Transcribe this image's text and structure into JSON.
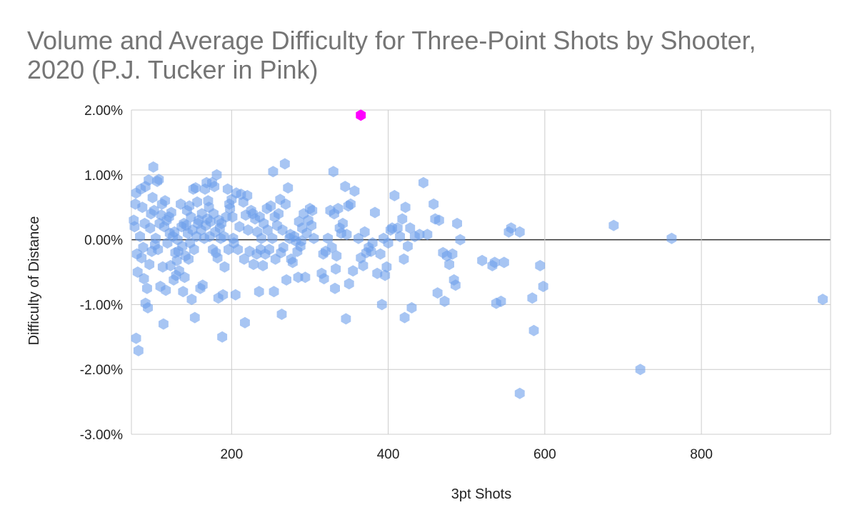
{
  "chart_data": {
    "type": "scatter",
    "title": "Volume and Average Difficulty for Three-Point Shots by Shooter, 2020 (P.J. Tucker in Pink)",
    "xlabel": "3pt Shots",
    "ylabel": "Difficulty of Distance",
    "xlim": [
      72,
      965
    ],
    "ylim": [
      -3.0,
      2.0
    ],
    "x_ticks": [
      200,
      400,
      600,
      800
    ],
    "x_tick_labels": [
      "200",
      "400",
      "600",
      "800"
    ],
    "y_ticks": [
      2.0,
      1.0,
      0.0,
      -1.0,
      -2.0,
      -3.0
    ],
    "y_tick_labels": [
      "2.00%",
      "1.00%",
      "0.00%",
      "-1.00%",
      "-2.00%",
      "-3.00%"
    ],
    "y_unit": "%",
    "grid": true,
    "legend": "none",
    "marker": "hexagon",
    "colors": {
      "default": "#6d9eeb",
      "highlight": "#ff00ff"
    },
    "series": [
      {
        "values": [
          [
            75,
            0.3
          ],
          [
            76,
            0.2
          ],
          [
            77,
            0.55
          ],
          [
            78,
            0.72
          ],
          [
            78,
            -1.52
          ],
          [
            79,
            -0.22
          ],
          [
            80,
            -0.5
          ],
          [
            81,
            -1.71
          ],
          [
            83,
            0.05
          ],
          [
            84,
            0.78
          ],
          [
            85,
            -0.28
          ],
          [
            86,
            0.5
          ],
          [
            87,
            -0.12
          ],
          [
            88,
            -0.6
          ],
          [
            89,
            0.25
          ],
          [
            90,
            -0.98
          ],
          [
            90,
            0.82
          ],
          [
            92,
            -0.75
          ],
          [
            93,
            -1.05
          ],
          [
            94,
            0.92
          ],
          [
            95,
            -0.38
          ],
          [
            96,
            0.18
          ],
          [
            97,
            0.4
          ],
          [
            98,
            -0.18
          ],
          [
            99,
            0.65
          ],
          [
            100,
            1.12
          ],
          [
            101,
            0.45
          ],
          [
            102,
            -0.08
          ],
          [
            103,
            0.02
          ],
          [
            105,
            0.9
          ],
          [
            106,
            -0.15
          ],
          [
            107,
            0.93
          ],
          [
            108,
            0.25
          ],
          [
            109,
            -0.72
          ],
          [
            110,
            0.38
          ],
          [
            111,
            0.55
          ],
          [
            112,
            -0.42
          ],
          [
            113,
            -1.3
          ],
          [
            114,
            0.2
          ],
          [
            115,
            0.6
          ],
          [
            116,
            -0.78
          ],
          [
            117,
            0.3
          ],
          [
            118,
            -0.05
          ],
          [
            120,
            0.35
          ],
          [
            121,
            0.1
          ],
          [
            122,
            -0.4
          ],
          [
            123,
            0.42
          ],
          [
            125,
            0.05
          ],
          [
            126,
            -0.62
          ],
          [
            127,
            0.12
          ],
          [
            128,
            -0.2
          ],
          [
            129,
            -0.55
          ],
          [
            130,
            -0.32
          ],
          [
            131,
            0.0
          ],
          [
            132,
            -0.18
          ],
          [
            133,
            -0.48
          ],
          [
            135,
            0.55
          ],
          [
            136,
            0.2
          ],
          [
            137,
            -0.1
          ],
          [
            138,
            -0.8
          ],
          [
            139,
            0.25
          ],
          [
            140,
            -0.58
          ],
          [
            141,
            -0.25
          ],
          [
            142,
            0.22
          ],
          [
            143,
            0.45
          ],
          [
            144,
            0.1
          ],
          [
            145,
            -0.3
          ],
          [
            146,
            0.52
          ],
          [
            147,
            -0.05
          ],
          [
            148,
            0.35
          ],
          [
            149,
            -0.92
          ],
          [
            150,
            0.15
          ],
          [
            151,
            0.78
          ],
          [
            152,
            -0.15
          ],
          [
            153,
            -1.2
          ],
          [
            154,
            0.8
          ],
          [
            155,
            0.05
          ],
          [
            156,
            0.58
          ],
          [
            157,
            0.25
          ],
          [
            158,
            0.3
          ],
          [
            160,
            -0.75
          ],
          [
            161,
            0.15
          ],
          [
            162,
            0.4
          ],
          [
            163,
            -0.7
          ],
          [
            165,
            0.02
          ],
          [
            166,
            0.78
          ],
          [
            167,
            0.22
          ],
          [
            168,
            0.88
          ],
          [
            169,
            0.32
          ],
          [
            170,
            0.6
          ],
          [
            171,
            0.5
          ],
          [
            172,
            0.05
          ],
          [
            173,
            0.28
          ],
          [
            175,
            0.88
          ],
          [
            176,
            -0.15
          ],
          [
            177,
            0.4
          ],
          [
            178,
            0.82
          ],
          [
            179,
            0.12
          ],
          [
            180,
            -0.2
          ],
          [
            181,
            1.0
          ],
          [
            182,
            -0.28
          ],
          [
            183,
            -0.9
          ],
          [
            184,
            0.3
          ],
          [
            185,
            0.18
          ],
          [
            186,
            0.02
          ],
          [
            187,
            0.25
          ],
          [
            188,
            -1.5
          ],
          [
            189,
            -0.85
          ],
          [
            190,
            0.05
          ],
          [
            191,
            -0.42
          ],
          [
            193,
            0.35
          ],
          [
            195,
            0.78
          ],
          [
            196,
            -0.15
          ],
          [
            197,
            0.55
          ],
          [
            198,
            0.48
          ],
          [
            200,
            0.62
          ],
          [
            201,
            0.35
          ],
          [
            202,
            0.02
          ],
          [
            203,
            -0.05
          ],
          [
            205,
            -0.85
          ],
          [
            206,
            0.72
          ],
          [
            208,
            -0.15
          ],
          [
            210,
            0.2
          ],
          [
            212,
            0.7
          ],
          [
            215,
            0.58
          ],
          [
            216,
            -0.3
          ],
          [
            217,
            -1.28
          ],
          [
            218,
            0.38
          ],
          [
            220,
            0.68
          ],
          [
            221,
            0.15
          ],
          [
            223,
            -0.18
          ],
          [
            225,
            0.45
          ],
          [
            227,
            0.4
          ],
          [
            228,
            -0.38
          ],
          [
            230,
            0.32
          ],
          [
            232,
            -0.22
          ],
          [
            233,
            0.12
          ],
          [
            235,
            -0.8
          ],
          [
            236,
            0.35
          ],
          [
            237,
            -0.15
          ],
          [
            238,
            0.02
          ],
          [
            240,
            -0.4
          ],
          [
            241,
            0.25
          ],
          [
            243,
            -0.22
          ],
          [
            245,
            0.48
          ],
          [
            246,
            0.15
          ],
          [
            248,
            -0.15
          ],
          [
            250,
            0.52
          ],
          [
            252,
            0.02
          ],
          [
            253,
            1.05
          ],
          [
            254,
            -0.8
          ],
          [
            255,
            0.35
          ],
          [
            256,
            -0.3
          ],
          [
            258,
            0.22
          ],
          [
            260,
            0.4
          ],
          [
            262,
            0.62
          ],
          [
            263,
            -0.2
          ],
          [
            264,
            -1.15
          ],
          [
            265,
            0.15
          ],
          [
            266,
            -0.12
          ],
          [
            268,
            1.17
          ],
          [
            269,
            0.55
          ],
          [
            270,
            -0.62
          ],
          [
            272,
            0.8
          ],
          [
            274,
            0.02
          ],
          [
            275,
            0.08
          ],
          [
            276,
            -0.3
          ],
          [
            278,
            -0.35
          ],
          [
            280,
            0.05
          ],
          [
            282,
            -0.02
          ],
          [
            284,
            -0.18
          ],
          [
            285,
            -0.58
          ],
          [
            286,
            0.28
          ],
          [
            288,
            -0.1
          ],
          [
            289,
            -0.02
          ],
          [
            290,
            0.18
          ],
          [
            292,
            0.4
          ],
          [
            294,
            -0.58
          ],
          [
            296,
            0.1
          ],
          [
            298,
            0.3
          ],
          [
            300,
            0.48
          ],
          [
            302,
            0.22
          ],
          [
            303,
            0.45
          ],
          [
            305,
            0.02
          ],
          [
            315,
            -0.52
          ],
          [
            317,
            -0.22
          ],
          [
            318,
            -0.6
          ],
          [
            320,
            -0.18
          ],
          [
            323,
            0.02
          ],
          [
            326,
            0.45
          ],
          [
            328,
            -0.12
          ],
          [
            330,
            1.05
          ],
          [
            331,
            0.4
          ],
          [
            332,
            -0.75
          ],
          [
            333,
            -0.45
          ],
          [
            334,
            -0.25
          ],
          [
            336,
            0.48
          ],
          [
            338,
            0.18
          ],
          [
            340,
            0.1
          ],
          [
            342,
            0.25
          ],
          [
            345,
            0.82
          ],
          [
            346,
            -1.22
          ],
          [
            347,
            0.08
          ],
          [
            349,
            0.52
          ],
          [
            350,
            -0.68
          ],
          [
            352,
            0.55
          ],
          [
            355,
            -0.48
          ],
          [
            357,
            0.75
          ],
          [
            362,
            0.02
          ],
          [
            365,
            -0.28
          ],
          [
            368,
            -0.4
          ],
          [
            370,
            0.12
          ],
          [
            372,
            -0.2
          ],
          [
            375,
            -0.12
          ],
          [
            378,
            -0.18
          ],
          [
            380,
            -0.05
          ],
          [
            383,
            0.42
          ],
          [
            386,
            -0.52
          ],
          [
            390,
            -0.22
          ],
          [
            392,
            -1.0
          ],
          [
            394,
            0.02
          ],
          [
            396,
            -0.55
          ],
          [
            398,
            -0.42
          ],
          [
            400,
            -0.05
          ],
          [
            403,
            0.15
          ],
          [
            405,
            0.18
          ],
          [
            408,
            0.68
          ],
          [
            412,
            0.18
          ],
          [
            415,
            0.05
          ],
          [
            418,
            0.32
          ],
          [
            420,
            -0.3
          ],
          [
            421,
            -1.2
          ],
          [
            422,
            0.5
          ],
          [
            425,
            -0.1
          ],
          [
            428,
            0.18
          ],
          [
            430,
            -1.05
          ],
          [
            434,
            0.05
          ],
          [
            440,
            0.08
          ],
          [
            445,
            0.88
          ],
          [
            450,
            0.08
          ],
          [
            458,
            0.55
          ],
          [
            460,
            0.32
          ],
          [
            463,
            -0.82
          ],
          [
            465,
            0.3
          ],
          [
            470,
            -0.2
          ],
          [
            472,
            -0.95
          ],
          [
            475,
            -0.25
          ],
          [
            478,
            -0.38
          ],
          [
            482,
            -0.22
          ],
          [
            484,
            -0.62
          ],
          [
            486,
            -0.7
          ],
          [
            488,
            0.25
          ],
          [
            492,
            0.0
          ],
          [
            520,
            -0.32
          ],
          [
            533,
            -0.4
          ],
          [
            536,
            -0.35
          ],
          [
            538,
            -0.98
          ],
          [
            544,
            -0.95
          ],
          [
            548,
            -0.35
          ],
          [
            554,
            0.12
          ],
          [
            557,
            0.18
          ],
          [
            568,
            0.12
          ],
          [
            568,
            -2.37
          ],
          [
            584,
            -0.9
          ],
          [
            586,
            -1.4
          ],
          [
            594,
            -0.4
          ],
          [
            598,
            -0.72
          ],
          [
            688,
            0.22
          ],
          [
            722,
            -2.0
          ],
          [
            762,
            0.02
          ],
          [
            955,
            -0.92
          ]
        ]
      },
      {
        "highlight": true,
        "values": [
          [
            365,
            1.92
          ]
        ]
      }
    ]
  }
}
